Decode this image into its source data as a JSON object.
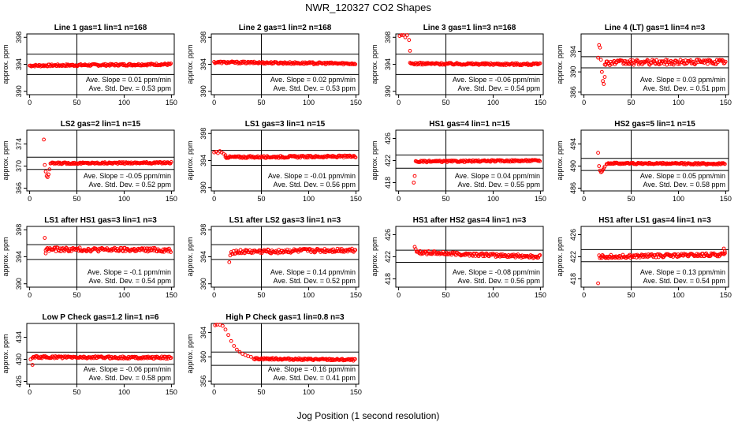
{
  "title": "NWR_120327  CO2 Shapes",
  "xlabel": "Jog Position (1 second resolution)",
  "colors": {
    "points": "#ff0000",
    "axes": "#000000"
  },
  "chart_data": [
    {
      "type": "scatter",
      "title": "Line 1 gas=1 lin=1 n=168",
      "ylabel": "approx. ppm",
      "xlim": [
        -3,
        153
      ],
      "ylim": [
        389.5,
        398.5
      ],
      "xticks": [
        0,
        50,
        100,
        150
      ],
      "yticks": [
        390,
        394,
        398
      ],
      "hlines": [
        395.5,
        392.5
      ],
      "vline": 50,
      "slope_text": "Ave. Slope = 0.01  ppm/min",
      "std_text": "Ave. Std. Dev. = 0.53  ppm",
      "x_start": 0,
      "x_end": 150,
      "base": 393.8,
      "end_level": 394.0,
      "noise": 0.15,
      "spikes": []
    },
    {
      "type": "scatter",
      "title": "Line 2 gas=1 lin=2 n=168",
      "ylabel": "approx. ppm",
      "xlim": [
        -3,
        153
      ],
      "ylim": [
        389.5,
        398.5
      ],
      "xticks": [
        0,
        50,
        100,
        150
      ],
      "yticks": [
        390,
        394,
        398
      ],
      "hlines": [
        395.5,
        392.5
      ],
      "vline": 50,
      "slope_text": "Ave. Slope = 0.02  ppm/min",
      "std_text": "Ave. Std. Dev. = 0.53  ppm",
      "x_start": 0,
      "x_end": 150,
      "base": 394.3,
      "end_level": 394.1,
      "noise": 0.15,
      "spikes": []
    },
    {
      "type": "scatter",
      "title": "Line 3 gas=1 lin=3 n=168",
      "ylabel": "approx. ppm",
      "xlim": [
        -3,
        153
      ],
      "ylim": [
        389.5,
        398.5
      ],
      "xticks": [
        0,
        50,
        100,
        150
      ],
      "yticks": [
        390,
        394,
        398
      ],
      "hlines": [
        395.5,
        392.5
      ],
      "vline": 50,
      "slope_text": "Ave. Slope = -0.06  ppm/min",
      "std_text": "Ave. Std. Dev. = 0.54  ppm",
      "x_start": 12,
      "x_end": 150,
      "base": 394.1,
      "end_level": 394.0,
      "noise": 0.15,
      "spikes": [
        [
          1,
          398.2
        ],
        [
          3,
          398.5
        ],
        [
          5,
          398.4
        ],
        [
          7,
          398.0
        ],
        [
          9,
          398.5
        ],
        [
          11,
          397.6
        ],
        [
          12,
          396.0
        ]
      ]
    },
    {
      "type": "scatter",
      "title": "Line 4 (LT) gas=1 lin=4 n=3",
      "ylabel": "approx. ppm",
      "xlim": [
        -3,
        153
      ],
      "ylim": [
        385.5,
        397.5
      ],
      "xticks": [
        0,
        50,
        100,
        150
      ],
      "yticks": [
        386,
        390,
        394
      ],
      "hlines": [
        393.0,
        390.8
      ],
      "vline": 50,
      "slope_text": "Ave. Slope = 0.03  ppm/min",
      "std_text": "Ave. Std. Dev. = 0.51  ppm",
      "x_start": 22,
      "x_end": 150,
      "base": 391.8,
      "end_level": 392.0,
      "noise": 0.5,
      "spikes": [
        [
          15,
          392.8
        ],
        [
          16,
          395.3
        ],
        [
          17,
          394.8
        ],
        [
          18,
          392.4
        ],
        [
          19,
          390.0
        ],
        [
          20,
          388.2
        ],
        [
          21,
          387.6
        ],
        [
          22,
          389.0
        ]
      ]
    },
    {
      "type": "scatter",
      "title": "LS2 gas=2 lin=1 n=15",
      "ylabel": "approx. ppm",
      "xlim": [
        -3,
        153
      ],
      "ylim": [
        365.5,
        376.5
      ],
      "xticks": [
        0,
        50,
        100,
        150
      ],
      "yticks": [
        366,
        370,
        374
      ],
      "hlines": [
        371.6,
        369.4
      ],
      "vline": 50,
      "slope_text": "Ave. Slope = -0.05  ppm/min",
      "std_text": "Ave. Std. Dev. = 0.52  ppm",
      "x_start": 22,
      "x_end": 150,
      "base": 370.5,
      "end_level": 370.6,
      "noise": 0.15,
      "spikes": [
        [
          15,
          374.8
        ],
        [
          16,
          370.2
        ],
        [
          17,
          369.0
        ],
        [
          18,
          368.2
        ],
        [
          19,
          368.0
        ],
        [
          20,
          368.5
        ],
        [
          21,
          369.4
        ]
      ]
    },
    {
      "type": "scatter",
      "title": "LS1 gas=3 lin=1 n=15",
      "ylabel": "approx. ppm",
      "xlim": [
        -3,
        153
      ],
      "ylim": [
        389.5,
        398.5
      ],
      "xticks": [
        0,
        50,
        100,
        150
      ],
      "yticks": [
        390,
        394,
        398
      ],
      "hlines": [
        395.5,
        393.3
      ],
      "vline": 50,
      "slope_text": "Ave. Slope = -0.01  ppm/min",
      "std_text": "Ave. Std. Dev. = 0.56  ppm",
      "x_start": 12,
      "x_end": 150,
      "base": 394.5,
      "end_level": 394.6,
      "noise": 0.15,
      "spikes": [
        [
          0,
          395.2
        ],
        [
          2,
          395.3
        ],
        [
          4,
          395.1
        ],
        [
          6,
          395.4
        ],
        [
          8,
          395.2
        ],
        [
          10,
          395.0
        ],
        [
          12,
          394.8
        ]
      ]
    },
    {
      "type": "scatter",
      "title": "HS1 gas=4 lin=1 n=15",
      "ylabel": "approx. ppm",
      "xlim": [
        -3,
        153
      ],
      "ylim": [
        416.5,
        427.5
      ],
      "xticks": [
        0,
        50,
        100,
        150
      ],
      "yticks": [
        418,
        422,
        426
      ],
      "hlines": [
        423.0,
        420.6
      ],
      "vline": 50,
      "slope_text": "Ave. Slope = 0.04  ppm/min",
      "std_text": "Ave. Std. Dev. = 0.55  ppm",
      "x_start": 18,
      "x_end": 150,
      "base": 421.8,
      "end_level": 422.0,
      "noise": 0.15,
      "spikes": [
        [
          16,
          418.0
        ],
        [
          17,
          419.2
        ]
      ]
    },
    {
      "type": "scatter",
      "title": "HS2 gas=5 lin=1 n=15",
      "ylabel": "approx. ppm",
      "xlim": [
        -3,
        153
      ],
      "ylim": [
        485.5,
        496.5
      ],
      "xticks": [
        0,
        50,
        100,
        150
      ],
      "yticks": [
        486,
        490,
        494
      ],
      "hlines": [
        491.4,
        489.2
      ],
      "vline": 50,
      "slope_text": "Ave. Slope = 0.05  ppm/min",
      "std_text": "Ave. Std. Dev. = 0.58  ppm",
      "x_start": 24,
      "x_end": 150,
      "base": 490.5,
      "end_level": 490.4,
      "noise": 0.15,
      "spikes": [
        [
          15,
          492.4
        ],
        [
          16,
          490.0
        ],
        [
          17,
          489.2
        ],
        [
          18,
          488.9
        ],
        [
          19,
          489.0
        ],
        [
          20,
          489.3
        ],
        [
          21,
          489.6
        ],
        [
          22,
          489.9
        ]
      ]
    },
    {
      "type": "scatter",
      "title": "LS1 after HS1 gas=3 lin=1 n=3",
      "ylabel": "approx. ppm",
      "xlim": [
        -3,
        153
      ],
      "ylim": [
        389.5,
        398.5
      ],
      "xticks": [
        0,
        50,
        100,
        150
      ],
      "yticks": [
        390,
        394,
        398
      ],
      "hlines": [
        395.8,
        393.6
      ],
      "vline": 50,
      "slope_text": "Ave. Slope = -0.1  ppm/min",
      "std_text": "Ave. Std. Dev. = 0.54  ppm",
      "x_start": 17,
      "x_end": 150,
      "base": 395.1,
      "end_level": 395.0,
      "noise": 0.3,
      "spikes": [
        [
          16,
          396.8
        ],
        [
          17,
          394.5
        ]
      ]
    },
    {
      "type": "scatter",
      "title": "LS1 after LS2 gas=3 lin=1 n=3",
      "ylabel": "approx. ppm",
      "xlim": [
        -3,
        153
      ],
      "ylim": [
        389.5,
        398.5
      ],
      "xticks": [
        0,
        50,
        100,
        150
      ],
      "yticks": [
        390,
        394,
        398
      ],
      "hlines": [
        395.8,
        393.6
      ],
      "vline": 50,
      "slope_text": "Ave. Slope = 0.14  ppm/min",
      "std_text": "Ave. Std. Dev. = 0.52  ppm",
      "x_start": 18,
      "x_end": 150,
      "base": 394.7,
      "end_level": 395.0,
      "noise": 0.3,
      "spikes": [
        [
          16,
          393.2
        ],
        [
          17,
          394.2
        ]
      ]
    },
    {
      "type": "scatter",
      "title": "HS1 after HS2 gas=4 lin=1 n=3",
      "ylabel": "approx. ppm",
      "xlim": [
        -3,
        153
      ],
      "ylim": [
        416.5,
        427.5
      ],
      "xticks": [
        0,
        50,
        100,
        150
      ],
      "yticks": [
        418,
        422,
        426
      ],
      "hlines": [
        423.2,
        421.0
      ],
      "vline": 50,
      "slope_text": "Ave. Slope = -0.08  ppm/min",
      "std_text": "Ave. Std. Dev. = 0.56  ppm",
      "x_start": 20,
      "x_end": 150,
      "base": 422.8,
      "end_level": 422.0,
      "noise": 0.3,
      "spikes": [
        [
          17,
          423.8
        ],
        [
          18,
          423.4
        ],
        [
          19,
          422.9
        ]
      ]
    },
    {
      "type": "scatter",
      "title": "HS1 after LS1 gas=4 lin=1 n=3",
      "ylabel": "approx. ppm",
      "xlim": [
        -3,
        153
      ],
      "ylim": [
        416.5,
        427.5
      ],
      "xticks": [
        0,
        50,
        100,
        150
      ],
      "yticks": [
        418,
        422,
        426
      ],
      "hlines": [
        423.3,
        421.1
      ],
      "vline": 50,
      "slope_text": "Ave. Slope = 0.13  ppm/min",
      "std_text": "Ave. Std. Dev. = 0.54  ppm",
      "x_start": 16,
      "x_end": 150,
      "base": 422.0,
      "end_level": 422.4,
      "noise": 0.3,
      "spikes": [
        [
          15,
          417.2
        ],
        [
          148,
          423.5
        ],
        [
          149,
          423.0
        ]
      ]
    },
    {
      "type": "scatter",
      "title": "Low P Check gas=1.2 lin=1 n=6",
      "ylabel": "approx. ppm",
      "xlim": [
        -3,
        153
      ],
      "ylim": [
        425.5,
        436.5
      ],
      "xticks": [
        0,
        50,
        100,
        150
      ],
      "yticks": [
        426,
        430,
        434
      ],
      "hlines": [
        431.3,
        429.1
      ],
      "vline": 50,
      "slope_text": "Ave. Slope = -0.06  ppm/min",
      "std_text": "Ave. Std. Dev. = 0.58  ppm",
      "x_start": 3,
      "x_end": 150,
      "base": 430.4,
      "end_level": 430.3,
      "noise": 0.2,
      "spikes": [
        [
          1,
          430.0
        ],
        [
          3,
          429.0
        ]
      ]
    },
    {
      "type": "scatter",
      "title": "High P Check gas=1 lin=0.8 n=3",
      "ylabel": "approx. ppm",
      "xlim": [
        -3,
        153
      ],
      "ylim": [
        355.5,
        365.5
      ],
      "xticks": [
        0,
        50,
        100,
        150
      ],
      "yticks": [
        356,
        360,
        364
      ],
      "hlines": [
        360.8,
        358.6
      ],
      "vline": 50,
      "slope_text": "Ave. Slope = -0.16  ppm/min",
      "std_text": "Ave. Std. Dev. = 0.41  ppm",
      "x_start": 42,
      "x_end": 150,
      "base": 359.7,
      "end_level": 359.5,
      "noise": 0.15,
      "spikes": [
        [
          1,
          365.2
        ],
        [
          3,
          365.4
        ],
        [
          6,
          365.3
        ],
        [
          9,
          365.1
        ],
        [
          12,
          364.5
        ],
        [
          15,
          363.6
        ],
        [
          18,
          362.6
        ],
        [
          21,
          361.8
        ],
        [
          24,
          361.2
        ],
        [
          27,
          360.8
        ],
        [
          30,
          360.5
        ],
        [
          33,
          360.3
        ],
        [
          36,
          360.1
        ],
        [
          39,
          360.0
        ]
      ]
    }
  ]
}
